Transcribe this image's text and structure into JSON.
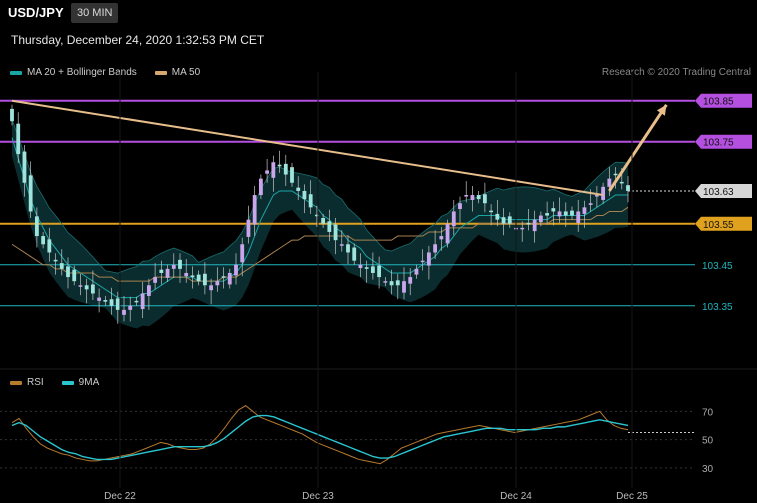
{
  "header": {
    "symbol": "USD/JPY",
    "timeframe": "30 MIN",
    "datetime": "Thursday, December 24, 2020 1:32:53 PM CET"
  },
  "legend": {
    "items": [
      {
        "label": "MA 20 + Bollinger Bands",
        "color": "#1aa5a5"
      },
      {
        "label": "MA 50",
        "color": "#d7a86e"
      }
    ],
    "credit": "Research © 2020 Trading Central"
  },
  "rsi_legend": {
    "items": [
      {
        "label": "RSI",
        "color": "#b87a2d"
      },
      {
        "label": "9MA",
        "color": "#29c6d0"
      }
    ]
  },
  "chart_data": [
    {
      "type": "candlestick",
      "ylim": [
        103.23,
        103.92
      ],
      "x_ticks": [
        "Dec 22",
        "Dec 23",
        "Dec 24",
        "Dec 25"
      ],
      "levels": [
        {
          "value": 103.85,
          "label": "103.85",
          "color": "#b44fe0",
          "style": "badge"
        },
        {
          "value": 103.75,
          "label": "103.75",
          "color": "#b44fe0",
          "style": "badge"
        },
        {
          "value": 103.63,
          "label": "103.63",
          "color": "#d9d9d9",
          "style": "last"
        },
        {
          "value": 103.55,
          "label": "103.55",
          "color": "#e0a21e",
          "style": "badge"
        },
        {
          "value": 103.45,
          "label": "103.45",
          "color": "#1fb5c0",
          "style": "text"
        },
        {
          "value": 103.35,
          "label": "103.35",
          "color": "#1fb5c0",
          "style": "text"
        }
      ],
      "close": [
        103.8,
        103.72,
        103.65,
        103.58,
        103.52,
        103.5,
        103.48,
        103.46,
        103.44,
        103.42,
        103.41,
        103.4,
        103.39,
        103.38,
        103.37,
        103.36,
        103.35,
        103.34,
        103.34,
        103.35,
        103.36,
        103.38,
        103.4,
        103.42,
        103.43,
        103.44,
        103.45,
        103.44,
        103.43,
        103.42,
        103.41,
        103.4,
        103.4,
        103.41,
        103.42,
        103.43,
        103.45,
        103.5,
        103.56,
        103.62,
        103.66,
        103.68,
        103.7,
        103.69,
        103.67,
        103.65,
        103.63,
        103.61,
        103.59,
        103.57,
        103.55,
        103.53,
        103.51,
        103.5,
        103.48,
        103.46,
        103.45,
        103.44,
        103.43,
        103.42,
        103.41,
        103.4,
        103.4,
        103.41,
        103.42,
        103.44,
        103.46,
        103.48,
        103.5,
        103.52,
        103.55,
        103.58,
        103.6,
        103.62,
        103.62,
        103.61,
        103.6,
        103.58,
        103.56,
        103.55,
        103.55,
        103.54,
        103.54,
        103.55,
        103.56,
        103.57,
        103.57,
        103.58,
        103.58,
        103.57,
        103.57,
        103.58,
        103.59,
        103.6,
        103.62,
        103.64,
        103.66,
        103.67,
        103.65,
        103.63
      ],
      "ma20": [
        103.76,
        103.71,
        103.66,
        103.61,
        103.57,
        103.54,
        103.51,
        103.49,
        103.47,
        103.45,
        103.44,
        103.43,
        103.42,
        103.41,
        103.4,
        103.39,
        103.38,
        103.37,
        103.37,
        103.37,
        103.37,
        103.38,
        103.38,
        103.39,
        103.4,
        103.41,
        103.42,
        103.42,
        103.42,
        103.42,
        103.41,
        103.41,
        103.41,
        103.41,
        103.41,
        103.42,
        103.43,
        103.45,
        103.48,
        103.52,
        103.56,
        103.59,
        103.62,
        103.63,
        103.63,
        103.63,
        103.62,
        103.61,
        103.6,
        103.59,
        103.57,
        103.56,
        103.54,
        103.53,
        103.51,
        103.5,
        103.49,
        103.47,
        103.46,
        103.45,
        103.44,
        103.43,
        103.43,
        103.43,
        103.43,
        103.44,
        103.45,
        103.46,
        103.47,
        103.49,
        103.5,
        103.52,
        103.54,
        103.55,
        103.56,
        103.57,
        103.57,
        103.57,
        103.57,
        103.56,
        103.56,
        103.56,
        103.56,
        103.56,
        103.56,
        103.56,
        103.56,
        103.57,
        103.57,
        103.57,
        103.57,
        103.57,
        103.57,
        103.58,
        103.59,
        103.6,
        103.61,
        103.62,
        103.62,
        103.62
      ],
      "ma50": [
        103.5,
        103.49,
        103.48,
        103.47,
        103.46,
        103.45,
        103.45,
        103.44,
        103.44,
        103.43,
        103.43,
        103.43,
        103.43,
        103.43,
        103.42,
        103.42,
        103.42,
        103.41,
        103.41,
        103.41,
        103.41,
        103.41,
        103.41,
        103.42,
        103.42,
        103.42,
        103.42,
        103.42,
        103.42,
        103.41,
        103.41,
        103.41,
        103.41,
        103.41,
        103.42,
        103.42,
        103.42,
        103.43,
        103.44,
        103.45,
        103.46,
        103.47,
        103.48,
        103.49,
        103.5,
        103.51,
        103.51,
        103.52,
        103.52,
        103.52,
        103.52,
        103.52,
        103.52,
        103.52,
        103.52,
        103.51,
        103.51,
        103.51,
        103.51,
        103.51,
        103.51,
        103.51,
        103.52,
        103.52,
        103.52,
        103.52,
        103.52,
        103.53,
        103.53,
        103.53,
        103.54,
        103.54,
        103.54,
        103.54,
        103.54,
        103.55,
        103.55,
        103.55,
        103.55,
        103.55,
        103.55,
        103.55,
        103.55,
        103.55,
        103.55,
        103.55,
        103.55,
        103.56,
        103.56,
        103.56,
        103.56,
        103.56,
        103.56,
        103.56,
        103.57,
        103.57,
        103.58,
        103.58,
        103.58,
        103.59
      ],
      "trendline": [
        [
          103.85,
          0
        ],
        [
          103.62,
          95
        ]
      ],
      "projection": [
        [
          103.63,
          96
        ],
        [
          103.84,
          105
        ]
      ]
    },
    {
      "type": "line",
      "ylim": [
        25,
        78
      ],
      "y_ticks": [
        70,
        50,
        30
      ],
      "ref_level": 55,
      "series": [
        {
          "name": "RSI",
          "values": [
            62,
            65,
            58,
            52,
            47,
            44,
            42,
            40,
            39,
            37,
            36,
            35,
            35,
            36,
            37,
            38,
            39,
            40,
            42,
            44,
            46,
            48,
            47,
            45,
            44,
            43,
            43,
            44,
            47,
            52,
            58,
            65,
            71,
            74,
            70,
            66,
            64,
            62,
            60,
            58,
            56,
            54,
            51,
            48,
            46,
            44,
            42,
            40,
            38,
            36,
            35,
            34,
            33,
            36,
            40,
            44,
            46,
            48,
            50,
            52,
            54,
            55,
            56,
            57,
            58,
            59,
            60,
            59,
            58,
            57,
            56,
            55,
            56,
            57,
            58,
            59,
            60,
            61,
            62,
            63,
            64,
            66,
            68,
            70,
            64,
            60,
            58,
            57
          ]
        },
        {
          "name": "9MA",
          "values": [
            60,
            62,
            60,
            56,
            52,
            49,
            46,
            43,
            41,
            40,
            38,
            37,
            36,
            36,
            36,
            37,
            38,
            39,
            40,
            41,
            42,
            43,
            44,
            45,
            45,
            45,
            45,
            45,
            46,
            48,
            51,
            55,
            59,
            63,
            66,
            67,
            67,
            66,
            64,
            62,
            60,
            58,
            56,
            54,
            52,
            50,
            48,
            46,
            44,
            42,
            40,
            38,
            37,
            37,
            38,
            40,
            42,
            44,
            46,
            48,
            50,
            52,
            53,
            54,
            55,
            56,
            57,
            58,
            58,
            58,
            57,
            57,
            57,
            57,
            57,
            58,
            58,
            59,
            59,
            60,
            61,
            62,
            63,
            64,
            63,
            62,
            61,
            60
          ]
        }
      ]
    }
  ]
}
